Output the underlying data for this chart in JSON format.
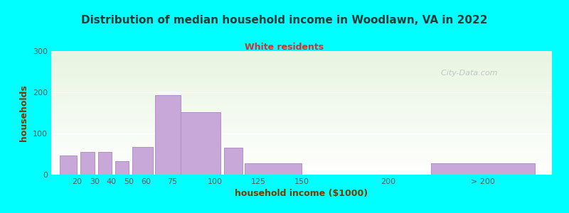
{
  "title": "Distribution of median household income in Woodlawn, VA in 2022",
  "subtitle": "White residents",
  "xlabel": "household income ($1000)",
  "ylabel": "households",
  "background_color": "#00FFFF",
  "plot_bg_top": "#e8f5e0",
  "plot_bg_bottom": "#f8fff8",
  "bar_color": "#c8a8d8",
  "bar_edge_color": "#b090c0",
  "title_color": "#1a3a3a",
  "subtitle_color": "#cc3333",
  "axis_label_color": "#7a3a00",
  "tick_label_color": "#555555",
  "watermark": "  City-Data.com",
  "ylim": [
    0,
    300
  ],
  "yticks": [
    0,
    100,
    200,
    300
  ],
  "bar_labels": [
    "20",
    "30",
    "40",
    "50",
    "60",
    "75",
    "100",
    "125",
    "150",
    "200",
    "> 200"
  ],
  "bar_values": [
    47,
    55,
    55,
    32,
    67,
    193,
    152,
    65,
    27,
    0,
    27
  ],
  "bar_lefts": [
    10,
    22,
    32,
    42,
    52,
    65,
    80,
    105,
    117,
    165,
    225
  ],
  "bar_widths": [
    10,
    8,
    8,
    8,
    12,
    15,
    23,
    11,
    33,
    30,
    60
  ]
}
